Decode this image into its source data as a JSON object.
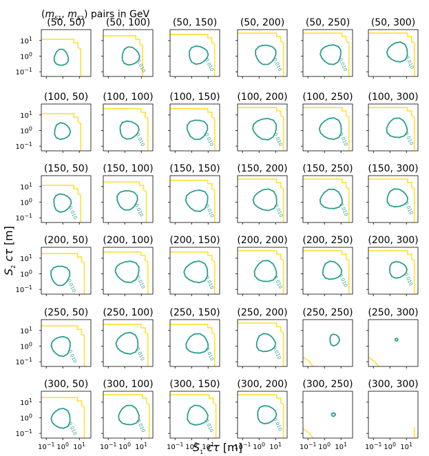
{
  "figure_title": "(m_S1, m_S2) pairs in GeV",
  "xlabel": "S1 cτ [m]",
  "ylabel": "S2 cτ [m]",
  "tick_labels": {
    "minus1": "10",
    "minus1_exp": "−1",
    "zero": "10",
    "zero_exp": "0",
    "one": "10",
    "one_exp": "1"
  },
  "contour_label": "0.010",
  "colors": {
    "inner_contour": "#2a9d8f",
    "outer_contour": "#ffe033",
    "axes": "#000000"
  },
  "chart_data": {
    "type": "contour-grid",
    "rows": [
      "50",
      "100",
      "150",
      "200",
      "250",
      "300"
    ],
    "cols": [
      "50",
      "100",
      "150",
      "200",
      "250",
      "300"
    ],
    "panel_titles": [
      [
        "(50, 50)",
        "(50, 100)",
        "(50, 150)",
        "(50, 200)",
        "(50, 250)",
        "(50, 300)"
      ],
      [
        "(100, 50)",
        "(100, 100)",
        "(100, 150)",
        "(100, 200)",
        "(100, 250)",
        "(100, 300)"
      ],
      [
        "(150, 50)",
        "(150, 100)",
        "(150, 150)",
        "(150, 200)",
        "(150, 250)",
        "(150, 300)"
      ],
      [
        "(200, 50)",
        "(200, 100)",
        "(200, 150)",
        "(200, 200)",
        "(200, 250)",
        "(200, 300)"
      ],
      [
        "(250, 50)",
        "(250, 100)",
        "(250, 150)",
        "(250, 200)",
        "(250, 250)",
        "(250, 300)"
      ],
      [
        "(300, 50)",
        "(300, 100)",
        "(300, 150)",
        "(300, 200)",
        "(300, 250)",
        "(300, 300)"
      ]
    ],
    "xscale": "log",
    "yscale": "log",
    "xlim": [
      0.05,
      50
    ],
    "ylim": [
      0.05,
      50
    ],
    "xticks": [
      0.1,
      1,
      10
    ],
    "yticks": [
      0.1,
      1,
      10
    ],
    "inner_contour_level": "0.010",
    "inner_contours": [
      [
        [
          0.8,
          0.8,
          0.45,
          0.5
        ],
        [
          2.2,
          1.0,
          0.55,
          0.55
        ],
        [
          2.5,
          1.2,
          0.6,
          0.55
        ],
        [
          2.5,
          1.3,
          0.65,
          0.6
        ],
        [
          2.5,
          1.3,
          0.65,
          0.6
        ],
        [
          3.0,
          1.8,
          0.65,
          0.6
        ]
      ],
      [
        [
          0.9,
          0.9,
          0.5,
          0.5
        ],
        [
          1.8,
          1.1,
          0.6,
          0.55
        ],
        [
          2.2,
          1.2,
          0.65,
          0.6
        ],
        [
          2.3,
          1.3,
          0.75,
          0.65
        ],
        [
          2.5,
          1.3,
          0.7,
          0.65
        ],
        [
          2.7,
          1.4,
          0.65,
          0.6
        ]
      ],
      [
        [
          0.9,
          0.9,
          0.55,
          0.55
        ],
        [
          1.4,
          1.4,
          0.65,
          0.6
        ],
        [
          2.2,
          1.3,
          0.7,
          0.65
        ],
        [
          2.5,
          1.4,
          0.75,
          0.65
        ],
        [
          2.6,
          1.5,
          0.7,
          0.6
        ],
        [
          2.7,
          1.8,
          0.65,
          0.55
        ]
      ],
      [
        [
          0.7,
          0.8,
          0.6,
          0.6
        ],
        [
          1.5,
          1.4,
          0.75,
          0.65
        ],
        [
          2.0,
          1.3,
          0.75,
          0.65
        ],
        [
          2.5,
          1.4,
          0.7,
          0.65
        ],
        [
          2.8,
          1.6,
          0.6,
          0.55
        ],
        [
          3.0,
          1.8,
          0.55,
          0.5
        ]
      ],
      [
        [
          0.8,
          1.0,
          0.6,
          0.6
        ],
        [
          1.5,
          1.5,
          0.7,
          0.65
        ],
        [
          2.2,
          1.4,
          0.7,
          0.6
        ],
        [
          2.5,
          1.6,
          0.6,
          0.55
        ],
        [
          4.0,
          2.5,
          0.3,
          0.35
        ],
        [
          2.5,
          2.6,
          0.08,
          0.08
        ]
      ],
      [
        [
          0.8,
          0.9,
          0.6,
          0.6
        ],
        [
          1.8,
          1.4,
          0.65,
          0.6
        ],
        [
          2.2,
          1.4,
          0.65,
          0.6
        ],
        [
          2.8,
          1.6,
          0.6,
          0.55
        ],
        [
          3.5,
          1.6,
          0.12,
          0.1
        ],
        null
      ]
    ],
    "outer_contour_edges": [
      [
        [
          12,
          12
        ],
        [
          12,
          20
        ],
        [
          25,
          25
        ],
        [
          30,
          30
        ],
        [
          30,
          30
        ],
        [
          30,
          30
        ]
      ],
      [
        [
          12,
          12
        ],
        [
          25,
          25
        ],
        [
          25,
          25
        ],
        [
          30,
          30
        ],
        [
          30,
          30
        ],
        [
          30,
          30
        ]
      ],
      [
        [
          12,
          12
        ],
        [
          20,
          20
        ],
        [
          25,
          25
        ],
        [
          30,
          30
        ],
        [
          30,
          30
        ],
        [
          30,
          30
        ]
      ],
      [
        [
          20,
          20
        ],
        [
          25,
          25
        ],
        [
          25,
          25
        ],
        [
          30,
          30
        ],
        [
          30,
          30
        ],
        [
          30,
          30
        ]
      ],
      [
        [
          20,
          20
        ],
        [
          25,
          25
        ],
        [
          25,
          25
        ],
        [
          30,
          30
        ],
        [
          0.1,
          0.1
        ],
        [
          0.1,
          0.1
        ]
      ],
      [
        [
          20,
          20
        ],
        [
          30,
          30
        ],
        [
          30,
          30
        ],
        [
          30,
          30
        ],
        [
          0.1,
          0.1
        ],
        [
          30,
          0.3
        ]
      ]
    ]
  }
}
